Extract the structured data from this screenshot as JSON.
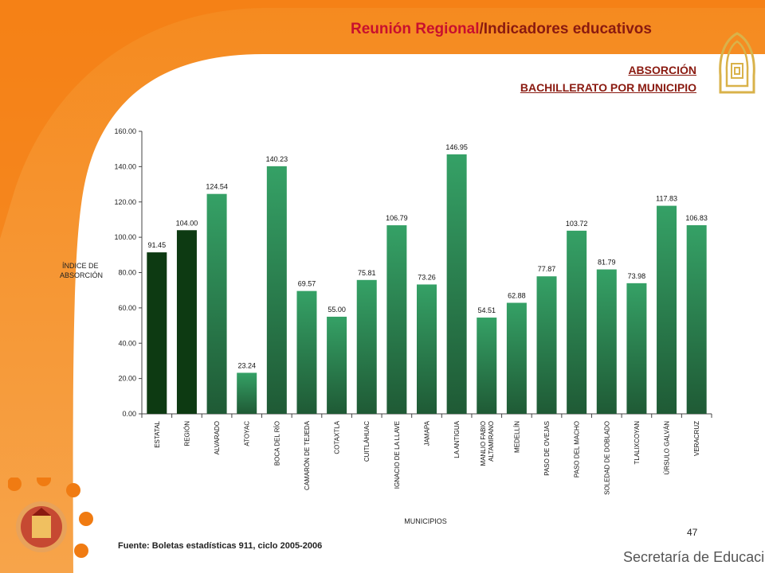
{
  "header": {
    "title_part1": "Reunión Regional",
    "title_sep": "/",
    "title_part2": "Indicadores educativos",
    "subtitle_line1": "ABSORCIÓN",
    "subtitle_line2": "BACHILLERATO POR MUNICIPIO"
  },
  "colors": {
    "orange": "#f07b12",
    "bar_green": "#2e9a5e",
    "bar_dark": "#0d3a12",
    "title_red": "#c8102e"
  },
  "chart_data": {
    "type": "bar",
    "title": "",
    "xlabel": "MUNICIPIOS",
    "ylabel": "ÍNDICE DE ABSORCIÓN",
    "ylim": [
      0,
      160
    ],
    "yticks": [
      "0.00",
      "20.00",
      "40.00",
      "60.00",
      "80.00",
      "100.00",
      "120.00",
      "140.00",
      "160.00"
    ],
    "grid": false,
    "categories": [
      "ESTATAL",
      "REGIÓN",
      "ALVARADO",
      "ATOYAC",
      "BOCA DEL RÍO",
      "CAMARÓN DE TEJEDA",
      "COTAXTLA",
      "CUITLÁHUAC",
      "IGNACIO DE LA LLAVE",
      "JAMAPA",
      "LA ANTIGUA",
      "MANLIO FABIO ALTAMIRANO",
      "MEDELLÍN",
      "PASO DE OVEJAS",
      "PASO DEL MACHO",
      "SOLEDAD DE DOBLADO",
      "TLALIXCOYAN",
      "ÚRSULO GALVÁN",
      "VERACRUZ"
    ],
    "values": [
      91.45,
      104.0,
      124.54,
      23.24,
      140.23,
      69.57,
      55.0,
      75.81,
      106.79,
      73.26,
      146.95,
      54.51,
      62.88,
      77.87,
      103.72,
      81.79,
      73.98,
      117.83,
      106.83
    ],
    "value_labels": [
      "91.45",
      "104.00",
      "124.54",
      "23.24",
      "140.23",
      "69.57",
      "55.00",
      "75.81",
      "106.79",
      "73.26",
      "146.95",
      "54.51",
      "62.88",
      "77.87",
      "103.72",
      "81.79",
      "73.98",
      "117.83",
      "106.83"
    ],
    "highlight": [
      true,
      true,
      false,
      false,
      false,
      false,
      false,
      false,
      false,
      false,
      false,
      false,
      false,
      false,
      false,
      false,
      false,
      false,
      false
    ]
  },
  "footer": {
    "source": "Fuente: Boletas estadísticas 911, ciclo 2005-2006",
    "page_number": "47",
    "brand": "Secretaría de Educación"
  }
}
